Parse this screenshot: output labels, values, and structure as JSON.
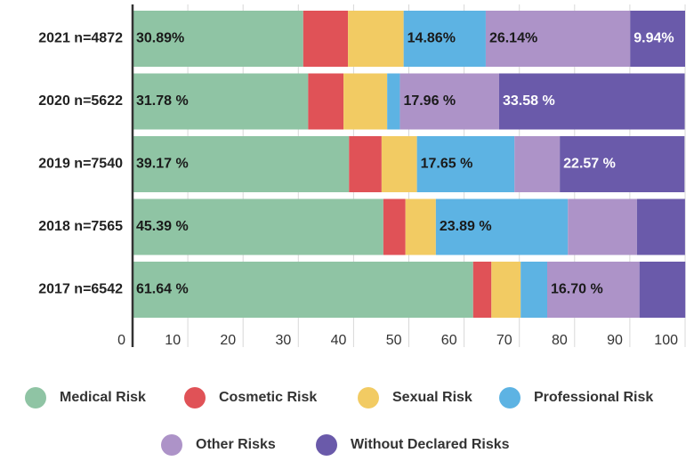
{
  "chart_data": {
    "type": "stacked-bar",
    "categories": [
      "2021 n=4872",
      "2020 n=5622",
      "2019 n=7540",
      "2018 n=7565",
      "2017 n=6542"
    ],
    "series": [
      {
        "name": "Medical Risk",
        "color": "#8fc4a4",
        "values": [
          30.89,
          31.78,
          39.17,
          45.39,
          61.64
        ],
        "value_labels": [
          "30.89%",
          "31.78 %",
          "39.17 %",
          "45.39 %",
          "61.64 %"
        ]
      },
      {
        "name": "Cosmetic Risk",
        "color": "#e05257",
        "values": [
          8.1,
          6.4,
          5.9,
          4.0,
          3.3
        ]
      },
      {
        "name": "Sexual Risk",
        "color": "#f2cb63",
        "values": [
          10.07,
          7.9,
          6.4,
          5.5,
          5.3
        ]
      },
      {
        "name": "Professional Risk",
        "color": "#5db3e3",
        "values": [
          14.86,
          2.3,
          17.65,
          23.89,
          4.8
        ],
        "value_labels": [
          "14.86%",
          null,
          "17.65 %",
          "23.89 %",
          null
        ]
      },
      {
        "name": "Other Risks",
        "color": "#ad93c8",
        "values": [
          26.14,
          17.96,
          8.2,
          12.5,
          16.7
        ],
        "value_labels": [
          "26.14%",
          "17.96 %",
          null,
          null,
          "16.70 %"
        ]
      },
      {
        "name": "Without Declared Risks",
        "color": "#6a5aaa",
        "values": [
          9.94,
          33.58,
          22.57,
          8.7,
          8.3
        ],
        "value_labels": [
          "9.94%",
          "33.58 %",
          "22.57 %",
          null,
          null
        ]
      }
    ],
    "xlim": [
      0,
      100
    ],
    "xticks": [
      0,
      10,
      20,
      30,
      40,
      50,
      60,
      70,
      80,
      90,
      100
    ],
    "grid": true
  }
}
